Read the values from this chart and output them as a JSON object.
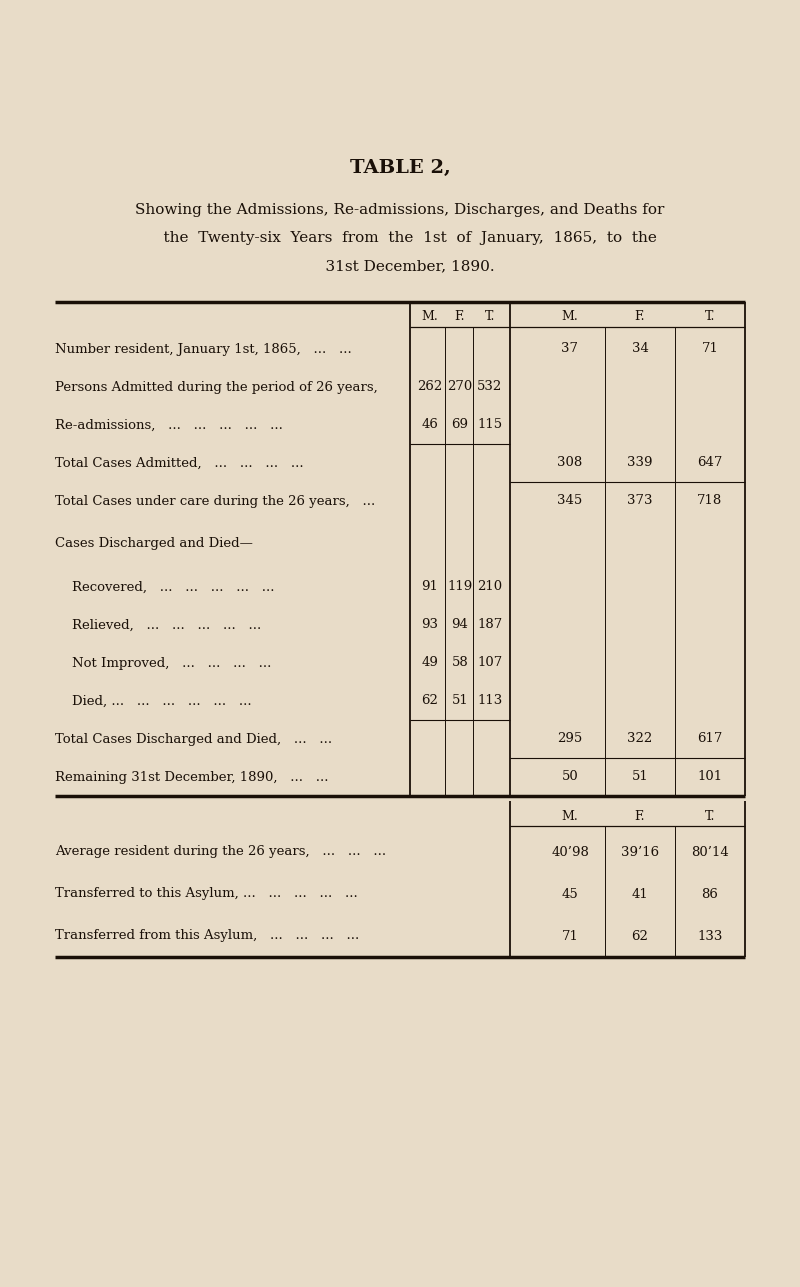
{
  "title": "TABLE 2,",
  "subtitle_lines": [
    "Showing the Admissions, Re-admissions, Discharges, and Deaths for",
    "    the  Twenty-six  Years  from  the  1st  of  January,  1865,  to  the",
    "    31st December, 1890."
  ],
  "bg_color": "#e8dcc8",
  "text_color": "#1a1008",
  "col_headers": [
    "M.",
    "F.",
    "T.",
    "M.",
    "F.",
    "T."
  ],
  "rows": [
    {
      "label": "Number resident, January 1st, 1865,   ...   ...",
      "indent": 0,
      "col1": [
        "",
        "",
        ""
      ],
      "col2": [
        "37",
        "34",
        "71"
      ],
      "sep_col1": false,
      "sep_col2": false
    },
    {
      "label": "Persons Admitted during the period of 26 years,",
      "indent": 0,
      "col1": [
        "262",
        "270",
        "532"
      ],
      "col2": [
        "",
        "",
        ""
      ],
      "sep_col1": false,
      "sep_col2": false
    },
    {
      "label": "Re-admissions,   ...   ...   ...   ...   ...",
      "indent": 0,
      "col1": [
        "46",
        "69",
        "115"
      ],
      "col2": [
        "",
        "",
        ""
      ],
      "sep_col1": true,
      "sep_col2": false
    },
    {
      "label": "Total Cases Admitted,   ...   ...   ...   ...",
      "indent": 0,
      "col1": [
        "",
        "",
        ""
      ],
      "col2": [
        "308",
        "339",
        "647"
      ],
      "sep_col1": false,
      "sep_col2": true
    },
    {
      "label": "Total Cases under care during the 26 years,   ...",
      "indent": 0,
      "col1": [
        "",
        "",
        ""
      ],
      "col2": [
        "345",
        "373",
        "718"
      ],
      "sep_col1": false,
      "sep_col2": false
    },
    {
      "label": "Cases Discharged and Died—",
      "indent": 0,
      "col1": [
        "",
        "",
        ""
      ],
      "col2": [
        "",
        "",
        ""
      ],
      "sep_col1": false,
      "sep_col2": false,
      "spacer": true
    },
    {
      "label": "    Recovered,   ...   ...   ...   ...   ...",
      "indent": 1,
      "col1": [
        "91",
        "119",
        "210"
      ],
      "col2": [
        "",
        "",
        ""
      ],
      "sep_col1": false,
      "sep_col2": false
    },
    {
      "label": "    Relieved,   ...   ...   ...   ...   ...",
      "indent": 1,
      "col1": [
        "93",
        "94",
        "187"
      ],
      "col2": [
        "",
        "",
        ""
      ],
      "sep_col1": false,
      "sep_col2": false
    },
    {
      "label": "    Not Improved,   ...   ...   ...   ...",
      "indent": 1,
      "col1": [
        "49",
        "58",
        "107"
      ],
      "col2": [
        "",
        "",
        ""
      ],
      "sep_col1": false,
      "sep_col2": false
    },
    {
      "label": "    Died, ...   ...   ...   ...   ...   ...",
      "indent": 1,
      "col1": [
        "62",
        "51",
        "113"
      ],
      "col2": [
        "",
        "",
        ""
      ],
      "sep_col1": true,
      "sep_col2": false
    },
    {
      "label": "Total Cases Discharged and Died,   ...   ...",
      "indent": 0,
      "col1": [
        "",
        "",
        ""
      ],
      "col2": [
        "295",
        "322",
        "617"
      ],
      "sep_col1": false,
      "sep_col2": true
    },
    {
      "label": "Remaining 31st December, 1890,   ...   ...",
      "indent": 0,
      "col1": [
        "",
        "",
        ""
      ],
      "col2": [
        "50",
        "51",
        "101"
      ],
      "sep_col1": false,
      "sep_col2": false
    }
  ],
  "bottom_rows": [
    {
      "label": "Average resident during the 26 years,   ...   ...   ...",
      "values": [
        "40’98",
        "39’16",
        "80’14"
      ]
    },
    {
      "label": "Transferred to this Asylum, ...   ...   ...   ...   ...",
      "values": [
        "45",
        "41",
        "86"
      ]
    },
    {
      "label": "Transferred from this Asylum,   ...   ...   ...   ...",
      "values": [
        "71",
        "62",
        "133"
      ]
    }
  ]
}
